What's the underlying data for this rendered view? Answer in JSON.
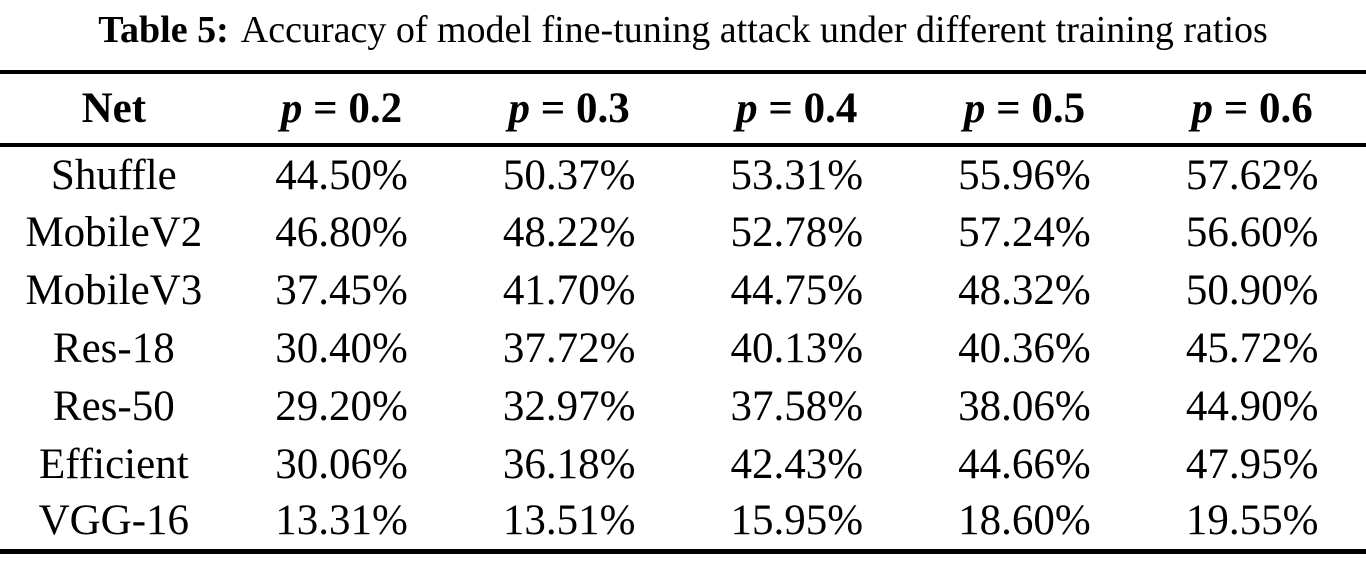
{
  "title": {
    "label": "Table 5:",
    "text": "Accuracy of model fine-tuning attack under different training ratios"
  },
  "table": {
    "headers": {
      "net": "Net",
      "cols": [
        {
          "var": "p",
          "rest": " = 0.2"
        },
        {
          "var": "p",
          "rest": " = 0.3"
        },
        {
          "var": "p",
          "rest": " = 0.4"
        },
        {
          "var": "p",
          "rest": " = 0.5"
        },
        {
          "var": "p",
          "rest": " = 0.6"
        }
      ]
    },
    "rows": [
      {
        "net": "Shuffle",
        "values": [
          "44.50%",
          "50.37%",
          "53.31%",
          "55.96%",
          "57.62%"
        ]
      },
      {
        "net": "MobileV2",
        "values": [
          "46.80%",
          "48.22%",
          "52.78%",
          "57.24%",
          "56.60%"
        ]
      },
      {
        "net": "MobileV3",
        "values": [
          "37.45%",
          "41.70%",
          "44.75%",
          "48.32%",
          "50.90%"
        ]
      },
      {
        "net": "Res-18",
        "values": [
          "30.40%",
          "37.72%",
          "40.13%",
          "40.36%",
          "45.72%"
        ]
      },
      {
        "net": "Res-50",
        "values": [
          "29.20%",
          "32.97%",
          "37.58%",
          "38.06%",
          "44.90%"
        ]
      },
      {
        "net": "Efficient",
        "values": [
          "30.06%",
          "36.18%",
          "42.43%",
          "44.66%",
          "47.95%"
        ]
      },
      {
        "net": "VGG-16",
        "values": [
          "13.31%",
          "13.51%",
          "15.95%",
          "18.60%",
          "19.55%"
        ]
      }
    ]
  },
  "colors": {
    "text": "#000000",
    "background": "#ffffff",
    "rule": "#000000"
  }
}
